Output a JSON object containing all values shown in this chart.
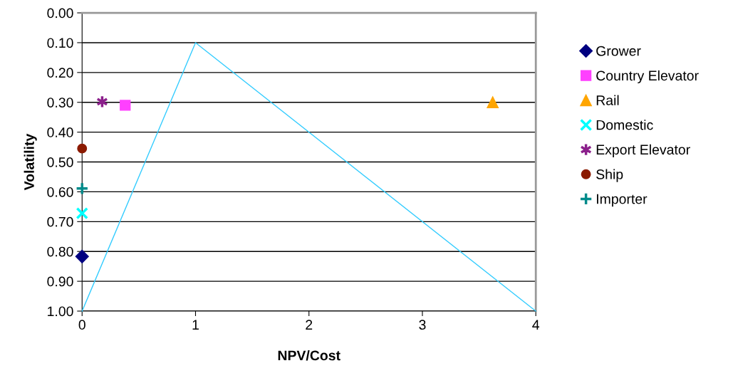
{
  "chart_data": {
    "type": "scatter",
    "xlabel": "NPV/Cost",
    "ylabel": "Volatility",
    "xlim": [
      0,
      4
    ],
    "xticks": [
      0,
      1,
      2,
      3,
      4
    ],
    "ylim": [
      1.0,
      0.0
    ],
    "yticks": [
      {
        "value": 0,
        "label": "0.00"
      },
      {
        "value": 0.1,
        "label": "0.10"
      },
      {
        "value": 0.2,
        "label": "0.20"
      },
      {
        "value": 0.3,
        "label": "0.30"
      },
      {
        "value": 0.4,
        "label": "0.40"
      },
      {
        "value": 0.5,
        "label": "0.50"
      },
      {
        "value": 0.6,
        "label": "0.60"
      },
      {
        "value": 0.7,
        "label": "0.70"
      },
      {
        "value": 0.8,
        "label": "0.80"
      },
      {
        "value": 0.9,
        "label": "0.90"
      },
      {
        "value": 1.0,
        "label": "1.00"
      }
    ],
    "grid": "y",
    "legend": "right",
    "series": [
      {
        "name": "Grower",
        "color": "#000080",
        "marker": "diamond",
        "x": [
          0
        ],
        "values": [
          0.817
        ]
      },
      {
        "name": "Country Elevator",
        "color": "#ff40ff",
        "marker": "square",
        "x": [
          0.38
        ],
        "values": [
          0.31
        ]
      },
      {
        "name": "Rail",
        "color": "#ffa500",
        "marker": "triangle",
        "x": [
          3.62
        ],
        "values": [
          0.3
        ]
      },
      {
        "name": "Domestic",
        "color": "#00ffff",
        "marker": "cross",
        "x": [
          0
        ],
        "values": [
          0.672
        ]
      },
      {
        "name": "Export Elevator",
        "color": "#8b1f8b",
        "x": [
          0.177
        ],
        "values": [
          0.298
        ]
      },
      {
        "name": "Ship",
        "color": "#8b1a00",
        "marker": "circle",
        "x": [
          0
        ],
        "values": [
          0.455
        ]
      },
      {
        "name": "Importer",
        "color": "#008b8b",
        "marker": "plus",
        "x": [
          0
        ],
        "values": [
          0.589
        ]
      },
      {
        "type": "line",
        "color": "#33ccff",
        "marker": "none",
        "x": [
          0,
          1,
          4
        ],
        "values": [
          1.0,
          0.1,
          1.0
        ]
      }
    ]
  }
}
